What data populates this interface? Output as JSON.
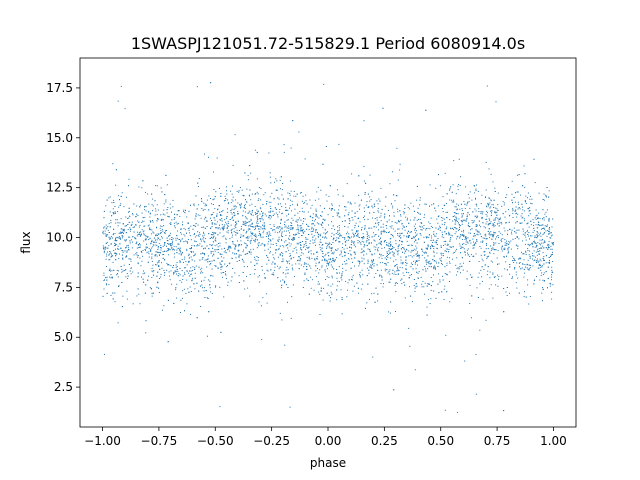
{
  "chart_data": {
    "type": "scatter",
    "title": "1SWASPJ121051.72-515829.1 Period 6080914.0s",
    "xlabel": "phase",
    "ylabel": "flux",
    "xlim": [
      -1.1,
      1.1
    ],
    "ylim": [
      0.5,
      19.0
    ],
    "x_ticks": [
      -1.0,
      -0.75,
      -0.5,
      -0.25,
      0.0,
      0.25,
      0.5,
      0.75,
      1.0
    ],
    "x_tick_labels": [
      "−1.00",
      "−0.75",
      "−0.50",
      "−0.25",
      "0.00",
      "0.25",
      "0.50",
      "0.75",
      "1.00"
    ],
    "y_ticks": [
      2.5,
      5.0,
      7.5,
      10.0,
      12.5,
      15.0,
      17.5
    ],
    "y_tick_labels": [
      "2.5",
      "5.0",
      "7.5",
      "10.0",
      "12.5",
      "15.0",
      "17.5"
    ],
    "grid": false,
    "marker_color": "#1f77b4",
    "series": [
      {
        "phase_range": [
          -1.0,
          1.0
        ],
        "flux_typical_center": 9.7,
        "flux_typical_band": [
          7.5,
          12.5
        ],
        "flux_extent": [
          1.2,
          18.0
        ],
        "profile": [
          {
            "x": -1.0,
            "y": 9.5
          },
          {
            "x": -0.9,
            "y": 9.8
          },
          {
            "x": -0.75,
            "y": 9.7
          },
          {
            "x": -0.6,
            "y": 9.4
          },
          {
            "x": -0.45,
            "y": 10.2
          },
          {
            "x": -0.3,
            "y": 10.3
          },
          {
            "x": -0.15,
            "y": 10.0
          },
          {
            "x": 0.0,
            "y": 9.5
          },
          {
            "x": 0.15,
            "y": 9.8
          },
          {
            "x": 0.3,
            "y": 9.7
          },
          {
            "x": 0.45,
            "y": 9.4
          },
          {
            "x": 0.55,
            "y": 10.2
          },
          {
            "x": 0.7,
            "y": 10.3
          },
          {
            "x": 0.85,
            "y": 10.0
          },
          {
            "x": 1.0,
            "y": 9.5
          }
        ]
      }
    ]
  }
}
